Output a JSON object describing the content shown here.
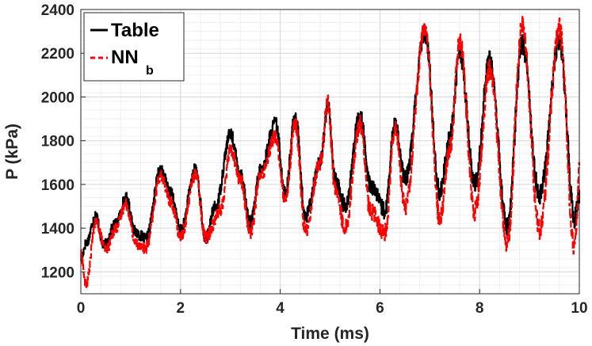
{
  "chart_data": {
    "type": "line",
    "title": "",
    "xlabel": "Time (ms)",
    "ylabel": "P (kPa)",
    "xlim": [
      0,
      10
    ],
    "ylim": [
      1100,
      2400
    ],
    "xticks": [
      "0",
      "2",
      "4",
      "6",
      "8",
      "10"
    ],
    "yticks": [
      "1200",
      "1400",
      "1600",
      "1800",
      "2000",
      "2200",
      "2400"
    ],
    "grid": true,
    "legend_position": "top-left",
    "series": [
      {
        "name": "Table",
        "legend_main": "Table",
        "legend_sub": "",
        "color": "#000000",
        "style": "solid",
        "x": [
          0,
          0.1,
          0.3,
          0.45,
          0.7,
          0.9,
          1.1,
          1.3,
          1.6,
          1.8,
          2.0,
          2.3,
          2.5,
          2.7,
          3.0,
          3.2,
          3.4,
          3.6,
          3.9,
          4.1,
          4.3,
          4.5,
          4.8,
          4.95,
          5.1,
          5.3,
          5.6,
          5.8,
          6.1,
          6.3,
          6.5,
          6.9,
          7.2,
          7.4,
          7.6,
          7.9,
          8.2,
          8.55,
          8.85,
          9.2,
          9.6,
          9.9,
          10.0
        ],
        "y": [
          1260,
          1330,
          1460,
          1320,
          1420,
          1540,
          1380,
          1350,
          1670,
          1560,
          1390,
          1670,
          1350,
          1500,
          1830,
          1650,
          1420,
          1660,
          1880,
          1560,
          1920,
          1450,
          1700,
          1960,
          1620,
          1500,
          1920,
          1600,
          1480,
          1880,
          1620,
          2290,
          1560,
          1820,
          2200,
          1600,
          2170,
          1400,
          2250,
          1550,
          2260,
          1450,
          1560
        ]
      },
      {
        "name": "NN_b",
        "legend_main": "NN",
        "legend_sub": "b",
        "color": "#ff0000",
        "style": "dashed",
        "x": [
          0,
          0.1,
          0.3,
          0.5,
          0.7,
          0.9,
          1.1,
          1.3,
          1.6,
          1.8,
          2.0,
          2.3,
          2.5,
          2.8,
          3.0,
          3.2,
          3.4,
          3.6,
          3.9,
          4.1,
          4.3,
          4.5,
          4.8,
          4.95,
          5.1,
          5.3,
          5.6,
          5.8,
          6.1,
          6.3,
          6.5,
          6.9,
          7.2,
          7.4,
          7.6,
          7.9,
          8.2,
          8.55,
          8.85,
          9.2,
          9.6,
          9.9,
          10.0
        ],
        "y": [
          1280,
          1140,
          1430,
          1300,
          1400,
          1510,
          1330,
          1310,
          1640,
          1520,
          1360,
          1650,
          1360,
          1480,
          1760,
          1620,
          1380,
          1640,
          1820,
          1520,
          1880,
          1390,
          1700,
          1980,
          1580,
          1400,
          1880,
          1480,
          1380,
          1870,
          1500,
          2310,
          1440,
          1760,
          2250,
          1480,
          2130,
          1330,
          2320,
          1390,
          2310,
          1300,
          1650
        ]
      }
    ]
  }
}
